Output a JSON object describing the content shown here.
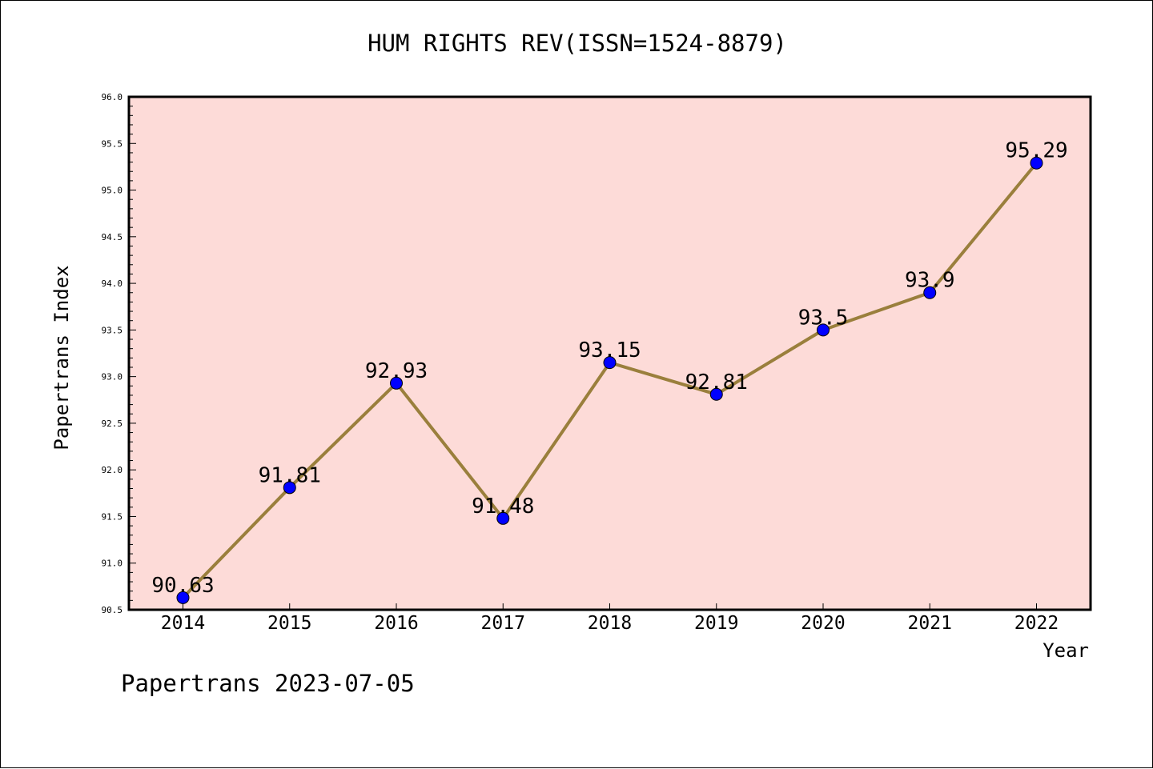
{
  "chart_data": {
    "type": "line",
    "title": "HUM RIGHTS REV(ISSN=1524-8879)",
    "xlabel": "Year",
    "ylabel": "Papertrans Index",
    "x": [
      "2014",
      "2015",
      "2016",
      "2017",
      "2018",
      "2019",
      "2020",
      "2021",
      "2022"
    ],
    "values": [
      90.63,
      91.81,
      92.93,
      91.48,
      93.15,
      92.81,
      93.5,
      93.9,
      95.29
    ],
    "data_labels": [
      "90.63",
      "91.81",
      "92.93",
      "91.48",
      "93.15",
      "92.81",
      "93.5",
      "93.9",
      "95.29"
    ],
    "ylim": [
      90.5,
      96.0
    ],
    "yticks": [
      "90.5",
      "91.0",
      "91.5",
      "92.0",
      "92.5",
      "93.0",
      "93.5",
      "94.0",
      "94.5",
      "95.0",
      "95.5",
      "96.0"
    ],
    "grid": false,
    "colors": {
      "plot_background": "#fddbd8",
      "line": "#9a7f3c",
      "marker": "#0000ff"
    }
  },
  "footer": "Papertrans 2023-07-05"
}
